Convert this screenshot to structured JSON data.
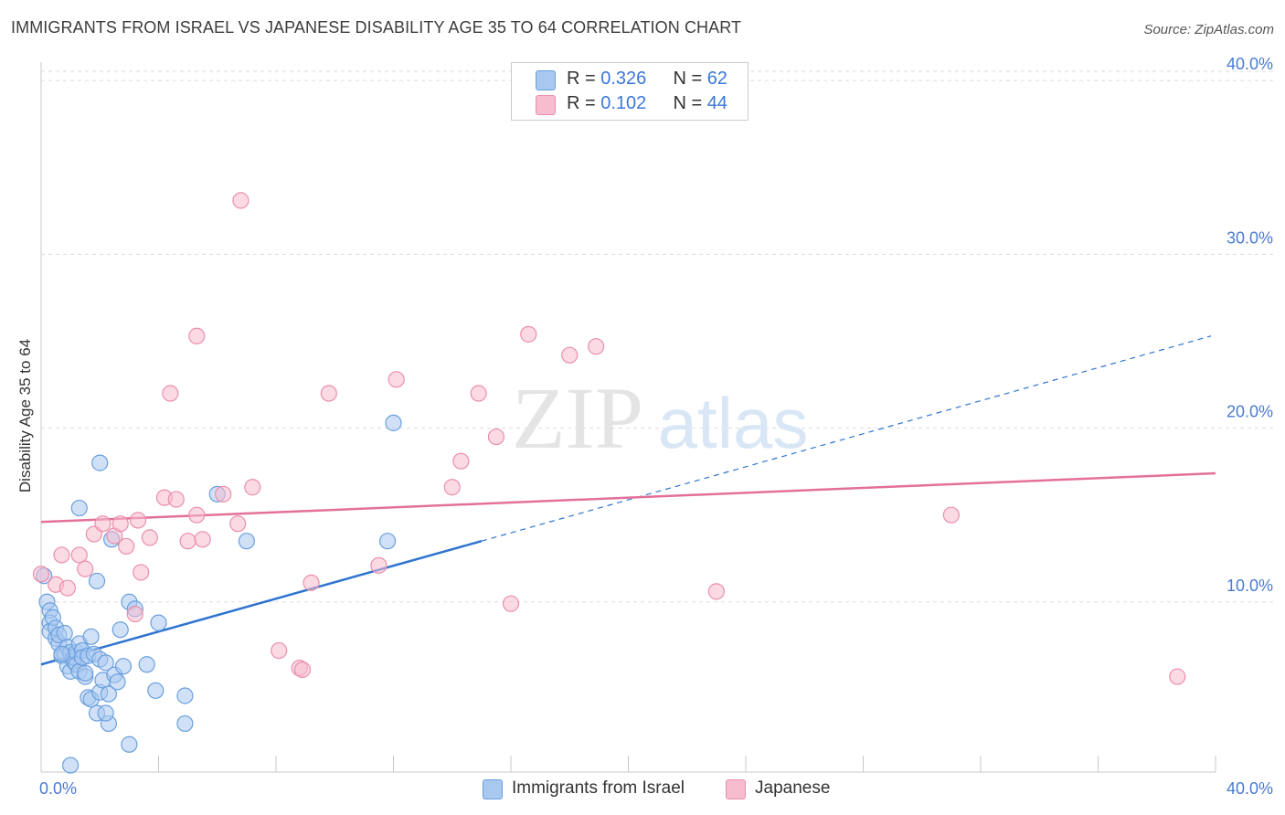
{
  "title": "IMMIGRANTS FROM ISRAEL VS JAPANESE DISABILITY AGE 35 TO 64 CORRELATION CHART",
  "source": "Source: ZipAtlas.com",
  "watermark": {
    "zip": "ZIP",
    "atlas": "atlas"
  },
  "legend": {
    "rows": [
      {
        "r_label": "R = ",
        "r_value": "0.326",
        "n_label": "N = ",
        "n_value": "62"
      },
      {
        "r_label": "R = ",
        "r_value": "0.102",
        "n_label": "N = ",
        "n_value": "44"
      }
    ],
    "bottom": [
      "Immigrants from Israel",
      "Japanese"
    ]
  },
  "colors": {
    "israel_fill": "#a9c8f0",
    "israel_stroke": "#6a9fde",
    "israel_line": "#2f74d0",
    "japanese_fill": "#f7bccd",
    "japanese_stroke": "#ea8fab",
    "japanese_line": "#e3709a",
    "tick": "#4a7bd0",
    "grid": "#dddddd"
  },
  "chart_data": {
    "type": "scatter",
    "title": "IMMIGRANTS FROM ISRAEL VS JAPANESE DISABILITY AGE 35 TO 64 CORRELATION CHART",
    "xlabel": "",
    "ylabel": "Disability Age 35 to 64",
    "xlim": [
      0,
      40
    ],
    "ylim": [
      0,
      40
    ],
    "x_tick_labels": [
      "0.0%",
      "40.0%"
    ],
    "y_ticks": [
      10,
      20,
      30,
      40
    ],
    "y_tick_labels": [
      "10.0%",
      "20.0%",
      "30.0%",
      "40.0%"
    ],
    "grid": true,
    "legend_position": "top-center",
    "series": [
      {
        "name": "Immigrants from Israel",
        "r": 0.326,
        "n": 62,
        "trend": {
          "x0": 0,
          "y0": 6.4,
          "x1": 15,
          "y1": 13.5,
          "dashed_to_x": 40,
          "dashed_to_y": 25.3
        },
        "points": [
          [
            0.1,
            11.5
          ],
          [
            0.2,
            10.0
          ],
          [
            0.3,
            9.5
          ],
          [
            0.3,
            8.8
          ],
          [
            0.3,
            8.3
          ],
          [
            0.4,
            9.1
          ],
          [
            0.5,
            7.9
          ],
          [
            0.5,
            8.5
          ],
          [
            0.6,
            7.6
          ],
          [
            0.6,
            8.1
          ],
          [
            0.7,
            6.9
          ],
          [
            0.8,
            7.0
          ],
          [
            0.8,
            8.2
          ],
          [
            0.9,
            6.3
          ],
          [
            0.9,
            7.4
          ],
          [
            1.0,
            7.1
          ],
          [
            1.0,
            6.0
          ],
          [
            1.1,
            6.6
          ],
          [
            1.1,
            6.8
          ],
          [
            1.2,
            7.1
          ],
          [
            1.2,
            6.4
          ],
          [
            1.3,
            6.0
          ],
          [
            1.3,
            7.6
          ],
          [
            1.4,
            7.2
          ],
          [
            1.4,
            6.8
          ],
          [
            1.5,
            5.7
          ],
          [
            1.6,
            6.9
          ],
          [
            1.6,
            4.5
          ],
          [
            1.7,
            8.0
          ],
          [
            1.7,
            4.4
          ],
          [
            1.8,
            7.0
          ],
          [
            1.9,
            3.6
          ],
          [
            2.0,
            6.7
          ],
          [
            2.0,
            4.8
          ],
          [
            2.1,
            5.5
          ],
          [
            2.2,
            6.5
          ],
          [
            2.3,
            3.0
          ],
          [
            2.3,
            4.7
          ],
          [
            2.5,
            5.8
          ],
          [
            2.6,
            5.4
          ],
          [
            2.7,
            8.4
          ],
          [
            2.8,
            6.3
          ],
          [
            3.0,
            10.0
          ],
          [
            3.2,
            9.6
          ],
          [
            3.6,
            6.4
          ],
          [
            3.9,
            4.9
          ],
          [
            4.9,
            4.6
          ],
          [
            4.9,
            3.0
          ],
          [
            1.0,
            0.6
          ],
          [
            3.0,
            1.8
          ],
          [
            2.2,
            3.6
          ],
          [
            1.9,
            11.2
          ],
          [
            2.4,
            13.6
          ],
          [
            1.3,
            15.4
          ],
          [
            2.0,
            18.0
          ],
          [
            6.0,
            16.2
          ],
          [
            7.0,
            13.5
          ],
          [
            12.0,
            20.3
          ],
          [
            11.8,
            13.5
          ],
          [
            1.5,
            5.9
          ],
          [
            4.0,
            8.8
          ],
          [
            0.7,
            7.0
          ]
        ]
      },
      {
        "name": "Japanese",
        "r": 0.102,
        "n": 44,
        "trend": {
          "x0": 0,
          "y0": 14.6,
          "x1": 40,
          "y1": 17.4
        },
        "points": [
          [
            0.0,
            11.6
          ],
          [
            0.5,
            11.0
          ],
          [
            0.7,
            12.7
          ],
          [
            0.9,
            10.8
          ],
          [
            1.3,
            12.7
          ],
          [
            1.5,
            11.9
          ],
          [
            1.8,
            13.9
          ],
          [
            2.1,
            14.5
          ],
          [
            2.5,
            13.8
          ],
          [
            2.7,
            14.5
          ],
          [
            2.9,
            13.2
          ],
          [
            3.2,
            9.3
          ],
          [
            3.3,
            14.7
          ],
          [
            3.4,
            11.7
          ],
          [
            3.7,
            13.7
          ],
          [
            4.2,
            16.0
          ],
          [
            4.6,
            15.9
          ],
          [
            4.4,
            22.0
          ],
          [
            5.0,
            13.5
          ],
          [
            5.3,
            15.0
          ],
          [
            5.5,
            13.6
          ],
          [
            6.2,
            16.2
          ],
          [
            6.7,
            14.5
          ],
          [
            7.2,
            16.6
          ],
          [
            8.1,
            7.2
          ],
          [
            8.8,
            6.2
          ],
          [
            8.9,
            6.1
          ],
          [
            9.2,
            11.1
          ],
          [
            9.8,
            22.0
          ],
          [
            11.5,
            12.1
          ],
          [
            12.1,
            22.8
          ],
          [
            14.0,
            16.6
          ],
          [
            14.3,
            18.1
          ],
          [
            14.9,
            22.0
          ],
          [
            15.5,
            19.5
          ],
          [
            16.0,
            9.9
          ],
          [
            16.6,
            25.4
          ],
          [
            18.0,
            24.2
          ],
          [
            18.9,
            24.7
          ],
          [
            23.0,
            10.6
          ],
          [
            31.0,
            15.0
          ],
          [
            38.7,
            5.7
          ],
          [
            6.8,
            33.1
          ],
          [
            5.3,
            25.3
          ]
        ]
      }
    ]
  }
}
